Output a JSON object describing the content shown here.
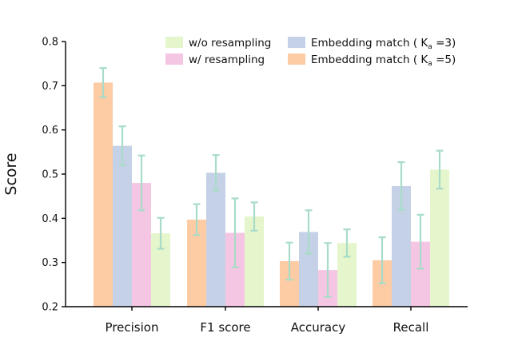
{
  "chart_data": {
    "type": "bar",
    "title": "",
    "xlabel": "",
    "ylabel": "Score",
    "ylim": [
      0.2,
      0.8
    ],
    "yticks": [
      "0.2",
      "0.3",
      "0.4",
      "0.5",
      "0.6",
      "0.7",
      "0.8"
    ],
    "categories": [
      "Precision",
      "F1 score",
      "Accuracy",
      "Recall"
    ],
    "grid": false,
    "legend_placement": "top-right",
    "errorbar_color": "#a8dcc8",
    "series": [
      {
        "name": "Embedding match ( K",
        "subscript": "a",
        "suffix": " =5)",
        "color": "#fdcba4",
        "values": [
          0.707,
          0.397,
          0.303,
          0.305
        ],
        "errors": [
          0.033,
          0.035,
          0.042,
          0.052
        ]
      },
      {
        "name": "Embedding match ( K",
        "subscript": "a",
        "suffix": " =3)",
        "color": "#c5d1e6",
        "values": [
          0.564,
          0.503,
          0.369,
          0.473
        ],
        "errors": [
          0.044,
          0.04,
          0.049,
          0.054
        ]
      },
      {
        "name": "w/ resampling",
        "subscript": "",
        "suffix": "",
        "color": "#f5c6e3",
        "values": [
          0.48,
          0.367,
          0.283,
          0.347
        ],
        "errors": [
          0.062,
          0.078,
          0.061,
          0.061
        ]
      },
      {
        "name": "w/o resampling",
        "subscript": "",
        "suffix": "",
        "color": "#e5f6cc",
        "values": [
          0.366,
          0.404,
          0.344,
          0.51
        ],
        "errors": [
          0.035,
          0.032,
          0.031,
          0.043
        ]
      }
    ],
    "legend_order": [
      3,
      1,
      2,
      0
    ]
  }
}
